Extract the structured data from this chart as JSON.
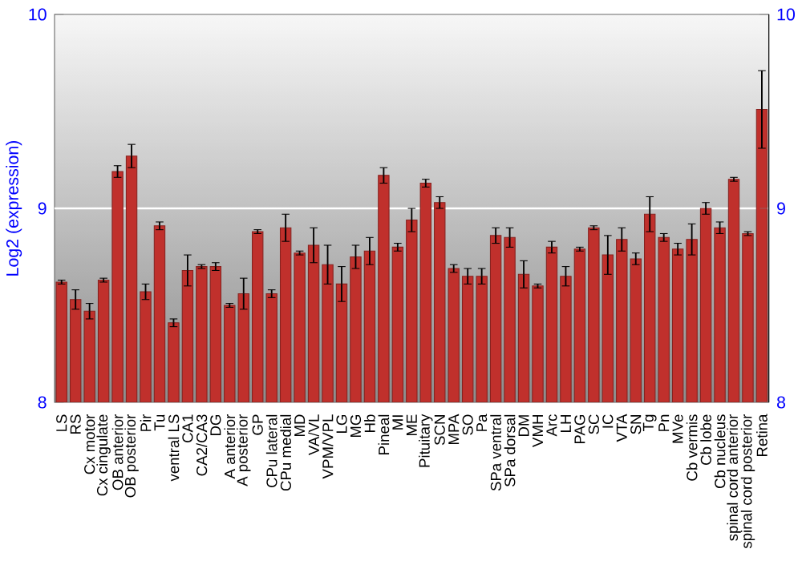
{
  "chart_data": {
    "type": "bar",
    "ylabel": "Log2 (expression)",
    "categories": [
      "LS",
      "RS",
      "Cx motor",
      "Cx cingulate",
      "OB anterior",
      "OB posterior",
      "Pir",
      "Tu",
      "ventral LS",
      "CA1",
      "CA2/CA3",
      "DG",
      "A anterior",
      "A posterior",
      "GP",
      "CPu lateral",
      "CPu medial",
      "MD",
      "VA/VL",
      "VPM/VPL",
      "LG",
      "MG",
      "Hb",
      "Pineal",
      "MI",
      "ME",
      "Pituitary",
      "SCN",
      "MPA",
      "SO",
      "Pa",
      "SPa ventral",
      "SPa dorsal",
      "DM",
      "VMH",
      "Arc",
      "LH",
      "PAG",
      "SC",
      "IC",
      "VTA",
      "SN",
      "Tg",
      "Pn",
      "MVe",
      "Cb vermis",
      "Cb lobe",
      "Cb nucleus",
      "spinal cord anterior",
      "spinal cord posterior",
      "Retina"
    ],
    "values": [
      8.62,
      8.53,
      8.47,
      8.63,
      9.19,
      9.27,
      8.57,
      8.91,
      8.41,
      8.68,
      8.7,
      8.7,
      8.5,
      8.56,
      8.88,
      8.56,
      8.9,
      8.77,
      8.81,
      8.71,
      8.61,
      8.75,
      8.78,
      9.17,
      8.8,
      8.94,
      9.13,
      9.03,
      8.69,
      8.65,
      8.65,
      8.86,
      8.85,
      8.66,
      8.6,
      8.8,
      8.65,
      8.79,
      8.9,
      8.76,
      8.84,
      8.74,
      8.97,
      8.85,
      8.79,
      8.84,
      9.0,
      8.9,
      9.15,
      8.87,
      9.51
    ],
    "errors": [
      0.01,
      0.05,
      0.04,
      0.01,
      0.03,
      0.06,
      0.04,
      0.02,
      0.02,
      0.08,
      0.01,
      0.02,
      0.01,
      0.08,
      0.01,
      0.02,
      0.07,
      0.01,
      0.09,
      0.1,
      0.09,
      0.06,
      0.07,
      0.04,
      0.02,
      0.06,
      0.02,
      0.03,
      0.02,
      0.04,
      0.04,
      0.04,
      0.05,
      0.07,
      0.01,
      0.03,
      0.05,
      0.01,
      0.01,
      0.1,
      0.06,
      0.03,
      0.09,
      0.02,
      0.03,
      0.08,
      0.03,
      0.03,
      0.01,
      0.01,
      0.2
    ],
    "color": "#c0302c",
    "ylim": [
      8,
      10
    ],
    "yticks": [
      8,
      9,
      10
    ],
    "y2lim": [
      8,
      10
    ],
    "y2ticks": [
      8,
      9,
      10
    ],
    "ref_lines": [
      {
        "axis": "y",
        "value": 9,
        "color": "#ffffff"
      }
    ]
  }
}
